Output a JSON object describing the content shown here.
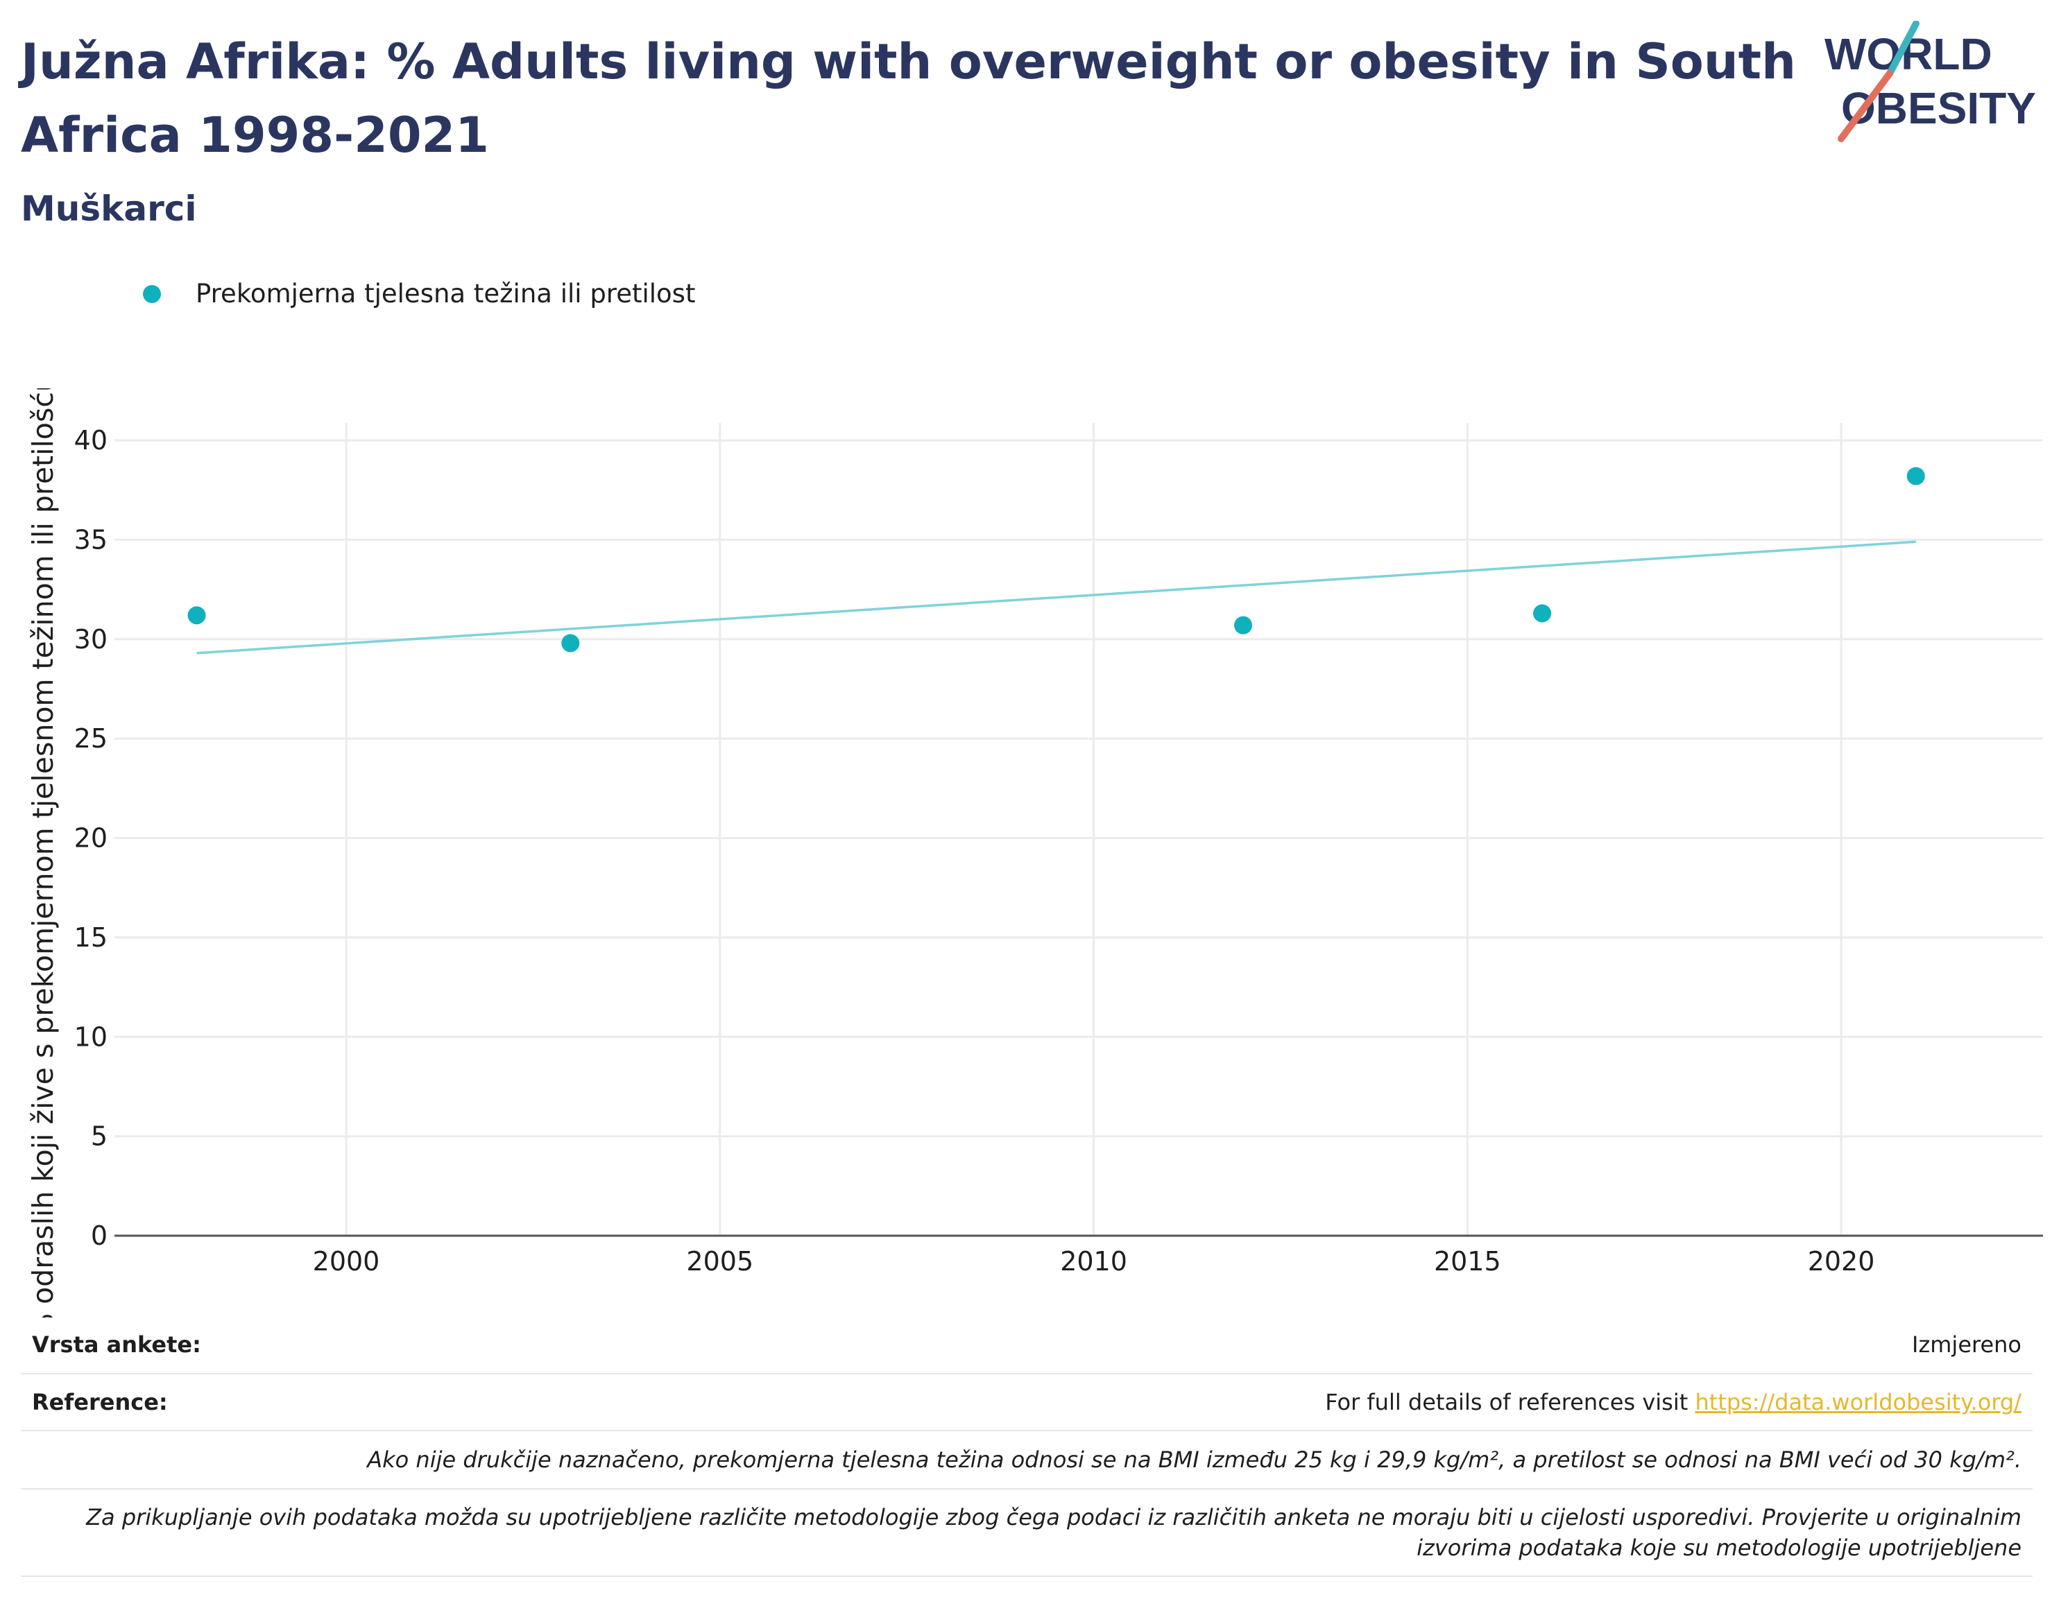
{
  "header": {
    "title": "Južna Afrika: % Adults living with overweight or obesity in South Africa 1998-2021",
    "subtitle": "Muškarci"
  },
  "logo": {
    "line1": "WORLD",
    "line2": "OBESITY",
    "text_color": "#2b3660",
    "slash_top_color": "#3cb4bf",
    "slash_bottom_color": "#e26f5c"
  },
  "legend": {
    "series_label": "Prekomjerna tjelesna težina ili pretilost",
    "color": "#0fb1bd"
  },
  "chart_data": {
    "type": "scatter",
    "ylabel": "% odraslih koji žive s prekomjernom tjelesnom težinom ili pretilošću",
    "xlabel": "",
    "xlim": [
      1996.9,
      2022.7
    ],
    "ylim": [
      0,
      40
    ],
    "x_ticks": [
      2000,
      2005,
      2010,
      2015,
      2020
    ],
    "y_ticks": [
      0,
      5,
      10,
      15,
      20,
      25,
      30,
      35,
      40
    ],
    "grid": true,
    "series": [
      {
        "name": "Prekomjerna tjelesna težina ili pretilost",
        "color": "#0fb1bd",
        "points": [
          {
            "x": 1998,
            "y": 31.2
          },
          {
            "x": 2003,
            "y": 29.8
          },
          {
            "x": 2012,
            "y": 30.7
          },
          {
            "x": 2016,
            "y": 31.3
          },
          {
            "x": 2021,
            "y": 38.2
          }
        ]
      }
    ],
    "trendline": {
      "color": "#7fd3d9",
      "start": {
        "x": 1998,
        "y": 29.3
      },
      "end": {
        "x": 2021,
        "y": 34.9
      }
    }
  },
  "footer": {
    "survey_type_label": "Vrsta ankete:",
    "survey_type_value": "Izmjereno",
    "references_label": "Reference:",
    "references_text": "For full details of references visit ",
    "references_link": "https://data.worldobesity.org/",
    "note_bmi": "Ako nije drukčije naznačeno, prekomjerna tjelesna težina odnosi se na BMI između 25 kg i 29,9 kg/m², a pretilost se odnosi na BMI veći od 30 kg/m².",
    "note_methodology": "Za prikupljanje ovih podataka možda su upotrijebljene različite metodologije zbog čega podaci iz različitih anketa ne moraju biti u cijelosti usporedivi. Provjerite u originalnim izvorima podataka koje su metodologije upotrijebljene"
  }
}
